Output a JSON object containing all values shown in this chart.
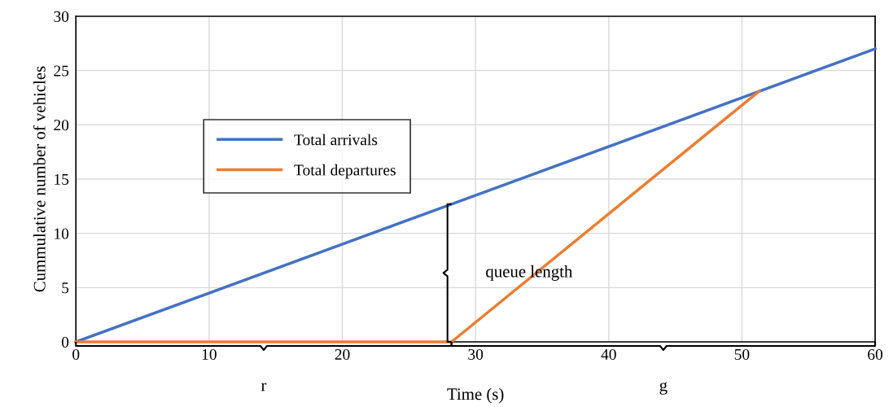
{
  "chart_data": {
    "type": "line",
    "xlabel": "Time (s)",
    "ylabel": "Cummulative number of vehicles",
    "xlim": [
      0,
      60
    ],
    "ylim": [
      0,
      30
    ],
    "xticks": [
      0,
      10,
      20,
      30,
      40,
      50,
      60
    ],
    "yticks": [
      0,
      5,
      10,
      15,
      20,
      25,
      30
    ],
    "series": [
      {
        "name": "Total arrivals",
        "color": "#4472c4",
        "x": [
          0,
          60
        ],
        "values": [
          0,
          27
        ]
      },
      {
        "name": "Total departures",
        "color": "#ed7d31",
        "x": [
          0,
          28.2,
          51.3
        ],
        "values": [
          0,
          0,
          23.1
        ]
      }
    ],
    "annotations": [
      "queue length",
      "r",
      "g"
    ],
    "grid": true,
    "legend": "left",
    "marker": "none",
    "line_style": "solid"
  }
}
